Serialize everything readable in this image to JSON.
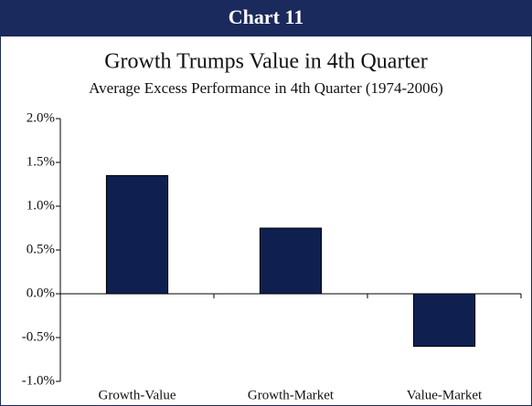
{
  "header": {
    "title": "Chart 11"
  },
  "chart_data": {
    "type": "bar",
    "title": "Growth Trumps Value in 4th Quarter",
    "subtitle": "Average Excess Performance in 4th Quarter (1974-2006)",
    "categories": [
      "Growth-Value",
      "Growth-Market",
      "Value-Market"
    ],
    "values": [
      1.35,
      0.75,
      -0.6
    ],
    "color": "#0f2050",
    "ylim": [
      -1.0,
      2.0
    ],
    "yticks": [
      {
        "value": -1.0,
        "label": "-1.0%"
      },
      {
        "value": -0.5,
        "label": "-0.5%"
      },
      {
        "value": 0.0,
        "label": "0.0%"
      },
      {
        "value": 0.5,
        "label": "0.5%"
      },
      {
        "value": 1.0,
        "label": "1.0%"
      },
      {
        "value": 1.5,
        "label": "1.5%"
      },
      {
        "value": 2.0,
        "label": "2.0%"
      }
    ],
    "grid": false
  }
}
